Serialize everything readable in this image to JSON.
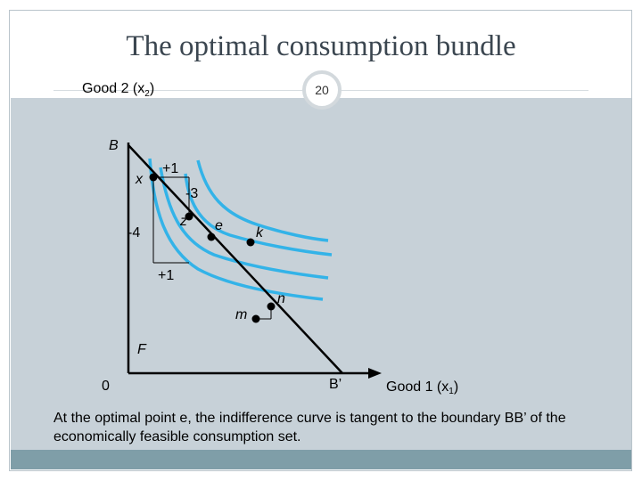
{
  "title": "The optimal consumption bundle",
  "page_number": "20",
  "axes": {
    "y_label": "Good 2 (x",
    "y_sub": "2",
    "y_close": ")",
    "x_label": "Good 1 (x",
    "x_sub": "1",
    "x_close": ")",
    "origin": "0"
  },
  "points": {
    "B": "B",
    "B_prime": "B’",
    "F": "F",
    "x": "x",
    "z": "z",
    "e": "e",
    "k": "k",
    "m": "m",
    "n": "n"
  },
  "annotations": {
    "plus1_top": "+1",
    "minus3": "-3",
    "minus4": "-4",
    "plus1_bottom": "+1"
  },
  "caption": "At the optimal point e, the indifference curve is tangent to the boundary BB’ of the economically feasible consumption set.",
  "colors": {
    "curve": "#33b3e8",
    "panel": "#c7d1d8",
    "footer": "#7f9ea8",
    "title": "#3b4650"
  }
}
